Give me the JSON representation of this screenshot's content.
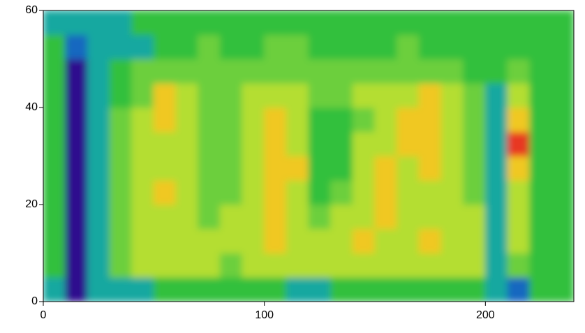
{
  "chart_data": {
    "type": "heatmap",
    "xbins": [
      0,
      10,
      20,
      30,
      40,
      50,
      60,
      70,
      80,
      90,
      100,
      110,
      120,
      130,
      140,
      150,
      160,
      170,
      180,
      190,
      200,
      210,
      220,
      230,
      240
    ],
    "ybins": [
      0,
      5,
      10,
      15,
      20,
      25,
      30,
      35,
      40,
      45,
      50,
      55,
      60
    ],
    "z": [
      [
        2,
        0,
        2,
        2,
        2,
        3,
        3,
        3,
        3,
        3,
        3,
        2,
        2,
        3,
        3,
        3,
        3,
        3,
        3,
        3,
        2,
        1,
        3,
        3
      ],
      [
        3,
        0,
        2,
        4,
        5,
        5,
        5,
        5,
        4,
        5,
        5,
        5,
        5,
        5,
        5,
        5,
        5,
        5,
        5,
        5,
        2,
        4,
        3,
        3
      ],
      [
        3,
        0,
        2,
        4,
        5,
        5,
        5,
        5,
        5,
        5,
        6,
        5,
        5,
        5,
        6,
        5,
        5,
        6,
        5,
        5,
        2,
        5,
        3,
        3
      ],
      [
        3,
        0,
        2,
        4,
        5,
        5,
        5,
        4,
        5,
        5,
        6,
        5,
        4,
        5,
        5,
        6,
        5,
        5,
        5,
        5,
        2,
        5,
        3,
        3
      ],
      [
        3,
        0,
        2,
        4,
        5,
        6,
        5,
        4,
        4,
        5,
        6,
        5,
        3,
        4,
        5,
        6,
        5,
        5,
        5,
        4,
        2,
        5,
        3,
        3
      ],
      [
        3,
        0,
        2,
        4,
        5,
        5,
        5,
        4,
        4,
        5,
        6,
        6,
        3,
        3,
        5,
        6,
        5,
        6,
        5,
        4,
        2,
        6,
        3,
        3
      ],
      [
        3,
        0,
        2,
        4,
        5,
        5,
        5,
        4,
        4,
        5,
        6,
        5,
        3,
        3,
        5,
        5,
        6,
        6,
        5,
        4,
        2,
        7,
        3,
        3
      ],
      [
        3,
        0,
        2,
        4,
        5,
        6,
        5,
        4,
        4,
        5,
        6,
        5,
        3,
        3,
        4,
        5,
        6,
        6,
        5,
        4,
        2,
        6,
        3,
        3
      ],
      [
        3,
        0,
        2,
        3,
        4,
        6,
        5,
        4,
        4,
        5,
        5,
        5,
        4,
        4,
        5,
        5,
        5,
        6,
        5,
        4,
        2,
        5,
        3,
        3
      ],
      [
        3,
        0,
        2,
        3,
        4,
        4,
        4,
        4,
        4,
        4,
        4,
        4,
        4,
        4,
        4,
        4,
        4,
        4,
        4,
        3,
        3,
        4,
        3,
        3
      ],
      [
        3,
        1,
        2,
        2,
        2,
        3,
        3,
        4,
        3,
        3,
        4,
        4,
        3,
        3,
        3,
        3,
        4,
        3,
        3,
        3,
        3,
        3,
        3,
        3
      ],
      [
        2,
        2,
        2,
        2,
        3,
        3,
        3,
        3,
        3,
        3,
        3,
        3,
        3,
        3,
        3,
        3,
        3,
        3,
        3,
        3,
        3,
        3,
        3,
        3
      ]
    ],
    "colors": [
      "#2e0c8e",
      "#1868c0",
      "#12a8a0",
      "#32c03c",
      "#6ccf3e",
      "#b4de32",
      "#f0c820",
      "#e83820"
    ],
    "xlim": [
      0,
      240
    ],
    "ylim": [
      0,
      60
    ],
    "xticks": [
      0,
      100,
      200
    ],
    "yticks": [
      0,
      20,
      40,
      60
    ]
  }
}
